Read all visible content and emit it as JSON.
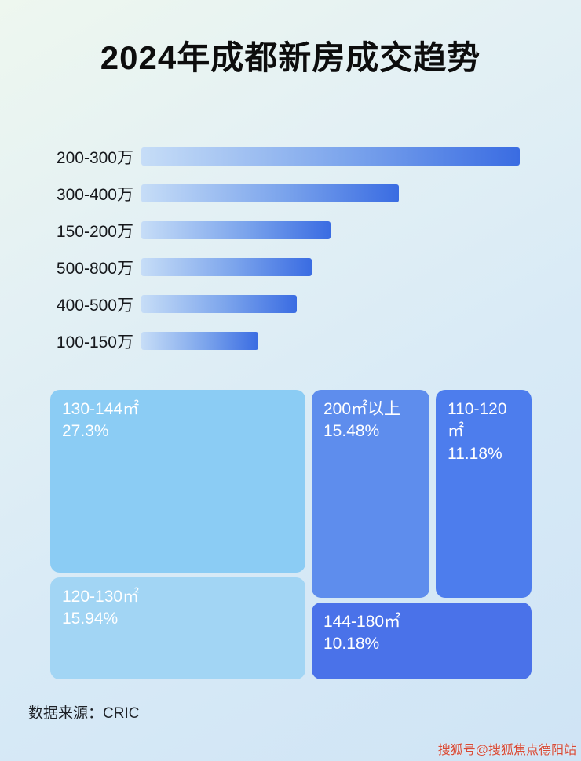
{
  "page": {
    "title": "2024年成都新房成交趋势",
    "source_label": "数据来源：CRIC",
    "watermark": "搜狐号@搜狐焦点德阳站"
  },
  "chart_data": [
    {
      "type": "bar",
      "title": "2024年成都新房成交趋势 — 按总价段",
      "orientation": "horizontal",
      "categories": [
        "200-300万",
        "300-400万",
        "150-200万",
        "500-800万",
        "400-500万",
        "100-150万"
      ],
      "values_pct_of_max": [
        100,
        68,
        50,
        45,
        41,
        31
      ],
      "axis_note": "无数值坐标轴；数值为相对最长条的比例",
      "grid": false,
      "legend": false,
      "bar_gradient_css": "linear-gradient(90deg, #c6ddf7 0%, #7ba4ec 55%, #3a6ce2 100%)"
    },
    {
      "type": "treemap",
      "title": "按面积段成交占比",
      "blocks": [
        {
          "label": "130-144㎡",
          "value": "27.3%",
          "color": "#8bccf4"
        },
        {
          "label": "200㎡以上",
          "value": "15.48%",
          "color": "#5e8ded"
        },
        {
          "label": "110-120㎡",
          "value": "11.18%",
          "color": "#4d7ded"
        },
        {
          "label": "120-130㎡",
          "value": "15.94%",
          "color": "#a2d5f4"
        },
        {
          "label": "144-180㎡",
          "value": "10.18%",
          "color": "#4a72e9"
        }
      ]
    }
  ]
}
